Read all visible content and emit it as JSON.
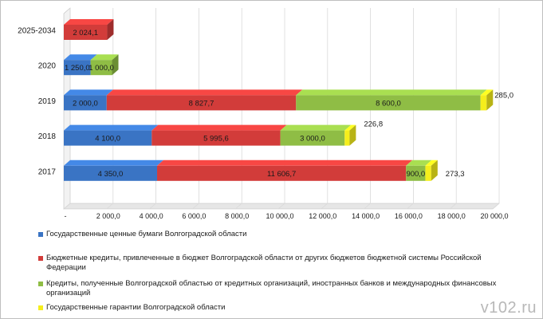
{
  "colors": {
    "gov_securities": "#3a74c4",
    "budget_credits": "#d23c3a",
    "bank_credits": "#8fbd45",
    "guarantees": "#f5ee1c",
    "grid": "#d9d9d9",
    "axis_text": "#1a1a1a"
  },
  "chart_data": {
    "type": "bar",
    "orientation": "horizontal",
    "stacked": true,
    "three_d": true,
    "categories": [
      "2025-2034",
      "2020",
      "2019",
      "2018",
      "2017"
    ],
    "xlim": [
      0,
      20000
    ],
    "x_ticks": [
      "-",
      "2 000,0",
      "4 000,0",
      "6 000,0",
      "8 000,0",
      "10 000,0",
      "12 000,0",
      "14 000,0",
      "16 000,0",
      "18 000,0",
      "20 000,0"
    ],
    "grid": true,
    "legend_position": "bottom",
    "series": [
      {
        "name": "Государственные ценные бумаги Волгоградской области",
        "color_key": "gov_securities",
        "values": [
          0,
          1250,
          2000,
          4100,
          4350
        ],
        "labels": [
          "",
          "1 250,0",
          "2 000,0",
          "4 100,0",
          "4 350,0"
        ]
      },
      {
        "name": "Бюджетные кредиты, привлеченные в бюджет Волгоградской области от других бюджетов бюджетной системы Российской Федерации",
        "color_key": "budget_credits",
        "values": [
          2024.1,
          0,
          8827.7,
          5995.6,
          11606.7
        ],
        "labels": [
          "2 024,1",
          "",
          "8 827,7",
          "5 995,6",
          "11 606,7"
        ]
      },
      {
        "name": "Кредиты, полученные Волгоградской областью от кредитных организаций, иностранных банков и международных финансовых организаций",
        "color_key": "bank_credits",
        "values": [
          0,
          1000,
          8600,
          3000,
          900
        ],
        "labels": [
          "",
          "1 000,0",
          "8 600,0",
          "3 000,0",
          "900,0"
        ]
      },
      {
        "name": "Государственные гарантии Волгоградской области",
        "color_key": "guarantees",
        "values": [
          0,
          0,
          285,
          226.8,
          273.3
        ],
        "labels": [
          "",
          "",
          "285,0",
          "226,8",
          "273,3"
        ]
      }
    ]
  },
  "watermark": "v102.ru"
}
